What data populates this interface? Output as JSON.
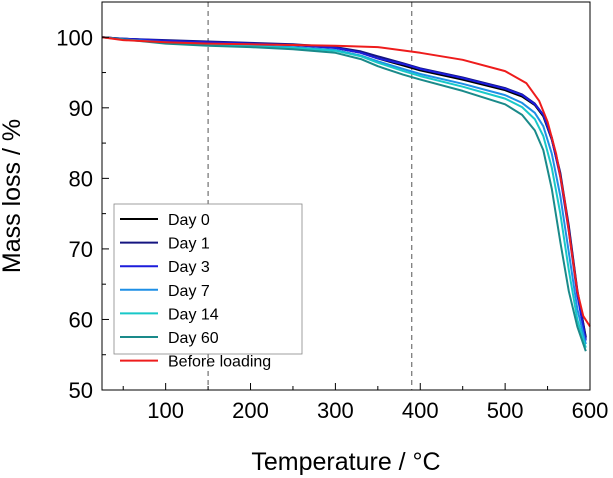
{
  "chart_data": {
    "type": "line",
    "title": "",
    "xlabel": "Temperature / °C",
    "ylabel": "Mass loss / %",
    "xlim": [
      25,
      600
    ],
    "ylim": [
      50,
      105
    ],
    "x_ticks": [
      100,
      200,
      300,
      400,
      500,
      600
    ],
    "y_ticks": [
      50,
      60,
      70,
      80,
      90,
      100
    ],
    "x_tick_labels": [
      "100",
      "200",
      "300",
      "400",
      "500",
      "600"
    ],
    "y_tick_labels": [
      "50",
      "60",
      "70",
      "80",
      "90",
      "100"
    ],
    "vlines": [
      150,
      390
    ],
    "grid": false,
    "legend_position": "bottom-left",
    "series": [
      {
        "name": "Day 0",
        "color": "#000000",
        "x": [
          25,
          50,
          100,
          150,
          200,
          250,
          300,
          330,
          350,
          380,
          400,
          450,
          500,
          520,
          535,
          545,
          555,
          565,
          575,
          585,
          595
        ],
        "y": [
          100,
          99.8,
          99.5,
          99.3,
          99.1,
          98.9,
          98.5,
          97.8,
          97.0,
          96.0,
          95.3,
          94.0,
          92.5,
          91.6,
          90.4,
          88.8,
          85.5,
          80.5,
          73.0,
          64.0,
          57.5
        ]
      },
      {
        "name": "Day 1",
        "color": "#151580",
        "x": [
          25,
          50,
          100,
          150,
          200,
          250,
          300,
          330,
          350,
          380,
          400,
          450,
          500,
          520,
          535,
          545,
          555,
          565,
          575,
          585,
          595
        ],
        "y": [
          100,
          99.8,
          99.6,
          99.4,
          99.2,
          99.0,
          98.6,
          98.0,
          97.3,
          96.3,
          95.6,
          94.3,
          92.8,
          91.9,
          90.6,
          89.0,
          85.8,
          80.8,
          73.3,
          64.2,
          57.3
        ]
      },
      {
        "name": "Day 3",
        "color": "#1c1cdb",
        "x": [
          25,
          50,
          100,
          150,
          200,
          250,
          300,
          330,
          350,
          380,
          400,
          450,
          500,
          520,
          535,
          545,
          555,
          565,
          575,
          585,
          595
        ],
        "y": [
          100,
          99.8,
          99.5,
          99.3,
          99.1,
          98.9,
          98.5,
          97.8,
          97.0,
          96.2,
          95.5,
          94.2,
          92.7,
          91.8,
          90.5,
          89.0,
          85.6,
          80.2,
          72.5,
          63.5,
          57.0
        ]
      },
      {
        "name": "Day 7",
        "color": "#1e8fe6",
        "x": [
          25,
          50,
          100,
          150,
          200,
          250,
          300,
          330,
          350,
          380,
          400,
          450,
          500,
          520,
          535,
          545,
          555,
          565,
          575,
          585,
          595
        ],
        "y": [
          100,
          99.7,
          99.3,
          99.0,
          98.8,
          98.6,
          98.2,
          97.4,
          96.6,
          95.5,
          94.8,
          93.4,
          91.8,
          90.7,
          89.3,
          87.4,
          83.5,
          77.5,
          69.5,
          61.5,
          56.5
        ]
      },
      {
        "name": "Day 14",
        "color": "#18c8c8",
        "x": [
          25,
          50,
          100,
          150,
          200,
          250,
          300,
          330,
          350,
          380,
          400,
          450,
          500,
          520,
          535,
          545,
          555,
          565,
          575,
          585,
          595
        ],
        "y": [
          100,
          99.7,
          99.2,
          98.9,
          98.7,
          98.5,
          98.1,
          97.3,
          96.4,
          95.2,
          94.5,
          93.0,
          91.3,
          90.1,
          88.4,
          86.0,
          81.5,
          75.0,
          67.0,
          60.0,
          56.0
        ]
      },
      {
        "name": "Day 60",
        "color": "#1a8a8a",
        "x": [
          25,
          50,
          100,
          150,
          200,
          250,
          300,
          330,
          350,
          380,
          400,
          450,
          500,
          520,
          535,
          545,
          555,
          565,
          575,
          585,
          595
        ],
        "y": [
          100,
          99.7,
          99.1,
          98.8,
          98.6,
          98.3,
          97.8,
          96.9,
          95.9,
          94.7,
          94.0,
          92.4,
          90.5,
          89.0,
          86.8,
          84.0,
          78.5,
          71.0,
          64.0,
          59.0,
          55.5
        ]
      },
      {
        "name": "Before loading",
        "color": "#ee1c1c",
        "x": [
          25,
          50,
          100,
          150,
          200,
          250,
          300,
          350,
          400,
          450,
          500,
          525,
          540,
          550,
          560,
          570,
          578,
          585,
          592,
          600
        ],
        "y": [
          100,
          99.6,
          99.3,
          99.1,
          99.0,
          98.9,
          98.8,
          98.6,
          97.8,
          96.8,
          95.2,
          93.5,
          91.0,
          88.0,
          83.5,
          77.0,
          70.0,
          64.0,
          60.5,
          59.0
        ]
      }
    ]
  }
}
